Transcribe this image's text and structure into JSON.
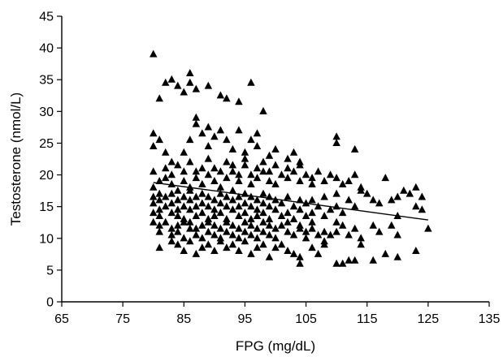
{
  "chart_data": {
    "type": "scatter",
    "title": "",
    "xlabel": "FPG (mg/dL)",
    "ylabel": "Testosterone (nmol/L)",
    "xlim": [
      65,
      135
    ],
    "ylim": [
      0,
      45
    ],
    "xticks": [
      65,
      75,
      85,
      95,
      105,
      115,
      125,
      135
    ],
    "yticks": [
      0,
      5,
      10,
      15,
      20,
      25,
      30,
      35,
      40,
      45
    ],
    "grid": false,
    "marker": "triangle",
    "color": "#000000",
    "trendline": {
      "x": [
        80,
        125
      ],
      "y": [
        18.8,
        12.9
      ]
    },
    "points": [
      [
        80,
        39.0
      ],
      [
        81,
        32.0
      ],
      [
        82,
        34.5
      ],
      [
        83,
        35.0
      ],
      [
        84,
        34.0
      ],
      [
        85,
        33.0
      ],
      [
        86,
        36.0
      ],
      [
        86,
        34.5
      ],
      [
        87,
        33.5
      ],
      [
        89,
        34.0
      ],
      [
        91,
        32.5
      ],
      [
        92,
        32.0
      ],
      [
        94,
        31.5
      ],
      [
        96,
        34.5
      ],
      [
        98,
        30.0
      ],
      [
        80,
        26.5
      ],
      [
        80,
        24.5
      ],
      [
        81,
        25.5
      ],
      [
        82,
        23.5
      ],
      [
        83,
        22.0
      ],
      [
        85,
        23.5
      ],
      [
        86,
        25.5
      ],
      [
        87,
        29.0
      ],
      [
        87,
        28.0
      ],
      [
        88,
        26.5
      ],
      [
        89,
        27.5
      ],
      [
        89,
        24.5
      ],
      [
        90,
        26.0
      ],
      [
        91,
        27.0
      ],
      [
        92,
        25.5
      ],
      [
        93,
        24.0
      ],
      [
        94,
        27.0
      ],
      [
        95,
        23.5
      ],
      [
        96,
        25.5
      ],
      [
        97,
        24.5
      ],
      [
        97,
        26.5
      ],
      [
        99,
        23.0
      ],
      [
        100,
        24.0
      ],
      [
        102,
        22.5
      ],
      [
        103,
        23.5
      ],
      [
        104,
        22.0
      ],
      [
        110,
        26.0
      ],
      [
        110,
        25.0
      ],
      [
        113,
        24.0
      ],
      [
        80,
        20.5
      ],
      [
        80,
        18.0
      ],
      [
        80,
        16.5
      ],
      [
        81,
        19.0
      ],
      [
        81,
        17.0
      ],
      [
        82,
        19.5
      ],
      [
        82,
        21.0
      ],
      [
        83,
        18.5
      ],
      [
        83,
        20.0
      ],
      [
        84,
        21.5
      ],
      [
        84,
        17.5
      ],
      [
        85,
        19.0
      ],
      [
        85,
        20.5
      ],
      [
        86,
        22.0
      ],
      [
        86,
        18.0
      ],
      [
        87,
        20.5
      ],
      [
        87,
        19.5
      ],
      [
        88,
        21.0
      ],
      [
        88,
        18.5
      ],
      [
        89,
        20.0
      ],
      [
        89,
        22.5
      ],
      [
        90,
        19.0
      ],
      [
        90,
        21.0
      ],
      [
        91,
        20.5
      ],
      [
        91,
        18.0
      ],
      [
        92,
        22.0
      ],
      [
        92,
        19.5
      ],
      [
        93,
        20.5
      ],
      [
        93,
        21.5
      ],
      [
        94,
        19.0
      ],
      [
        94,
        20.0
      ],
      [
        95,
        21.5
      ],
      [
        95,
        22.5
      ],
      [
        96,
        20.0
      ],
      [
        96,
        18.5
      ],
      [
        97,
        21.0
      ],
      [
        97,
        19.5
      ],
      [
        98,
        20.5
      ],
      [
        98,
        22.0
      ],
      [
        99,
        19.0
      ],
      [
        99,
        20.5
      ],
      [
        100,
        21.5
      ],
      [
        100,
        18.5
      ],
      [
        101,
        20.0
      ],
      [
        102,
        19.5
      ],
      [
        102,
        21.0
      ],
      [
        103,
        20.5
      ],
      [
        104,
        19.0
      ],
      [
        104,
        21.5
      ],
      [
        105,
        20.0
      ],
      [
        106,
        19.5
      ],
      [
        106,
        18.5
      ],
      [
        107,
        20.5
      ],
      [
        108,
        19.0
      ],
      [
        109,
        20.0
      ],
      [
        110,
        19.5
      ],
      [
        111,
        18.5
      ],
      [
        112,
        19.0
      ],
      [
        113,
        20.0
      ],
      [
        114,
        18.0
      ],
      [
        118,
        19.5
      ],
      [
        120,
        16.5
      ],
      [
        121,
        17.5
      ],
      [
        122,
        17.0
      ],
      [
        123,
        18.0
      ],
      [
        124,
        16.5
      ],
      [
        80,
        15.5
      ],
      [
        80,
        14.0
      ],
      [
        81,
        16.0
      ],
      [
        81,
        14.5
      ],
      [
        81,
        13.5
      ],
      [
        82,
        15.0
      ],
      [
        82,
        16.5
      ],
      [
        83,
        14.0
      ],
      [
        83,
        15.5
      ],
      [
        83,
        17.0
      ],
      [
        84,
        13.5
      ],
      [
        84,
        16.0
      ],
      [
        84,
        14.5
      ],
      [
        85,
        15.0
      ],
      [
        85,
        16.5
      ],
      [
        85,
        13.0
      ],
      [
        86,
        14.5
      ],
      [
        86,
        16.0
      ],
      [
        86,
        17.5
      ],
      [
        87,
        15.0
      ],
      [
        87,
        13.5
      ],
      [
        87,
        16.5
      ],
      [
        88,
        14.0
      ],
      [
        88,
        15.5
      ],
      [
        88,
        17.0
      ],
      [
        89,
        13.0
      ],
      [
        89,
        15.0
      ],
      [
        89,
        16.5
      ],
      [
        90,
        14.5
      ],
      [
        90,
        16.0
      ],
      [
        90,
        13.5
      ],
      [
        91,
        15.5
      ],
      [
        91,
        17.0
      ],
      [
        91,
        14.0
      ],
      [
        92,
        15.0
      ],
      [
        92,
        16.5
      ],
      [
        92,
        13.0
      ],
      [
        93,
        14.5
      ],
      [
        93,
        16.0
      ],
      [
        93,
        17.5
      ],
      [
        94,
        15.0
      ],
      [
        94,
        13.5
      ],
      [
        94,
        16.5
      ],
      [
        95,
        14.0
      ],
      [
        95,
        15.5
      ],
      [
        95,
        17.0
      ],
      [
        96,
        13.0
      ],
      [
        96,
        15.0
      ],
      [
        96,
        16.5
      ],
      [
        97,
        14.5
      ],
      [
        97,
        16.0
      ],
      [
        97,
        13.5
      ],
      [
        98,
        15.5
      ],
      [
        98,
        17.0
      ],
      [
        98,
        14.0
      ],
      [
        99,
        15.0
      ],
      [
        99,
        16.5
      ],
      [
        99,
        13.0
      ],
      [
        100,
        14.5
      ],
      [
        100,
        16.0
      ],
      [
        101,
        15.5
      ],
      [
        101,
        13.5
      ],
      [
        102,
        14.0
      ],
      [
        102,
        16.5
      ],
      [
        103,
        15.0
      ],
      [
        103,
        13.0
      ],
      [
        104,
        14.5
      ],
      [
        104,
        16.0
      ],
      [
        105,
        15.5
      ],
      [
        105,
        13.5
      ],
      [
        106,
        14.0
      ],
      [
        106,
        16.0
      ],
      [
        107,
        15.0
      ],
      [
        108,
        13.5
      ],
      [
        108,
        16.5
      ],
      [
        109,
        14.5
      ],
      [
        110,
        15.0
      ],
      [
        110,
        17.0
      ],
      [
        111,
        14.0
      ],
      [
        112,
        16.0
      ],
      [
        113,
        15.0
      ],
      [
        114,
        17.5
      ],
      [
        115,
        17.0
      ],
      [
        116,
        16.0
      ],
      [
        117,
        15.5
      ],
      [
        119,
        16.0
      ],
      [
        120,
        13.5
      ],
      [
        123,
        15.0
      ],
      [
        124,
        14.5
      ],
      [
        80,
        12.5
      ],
      [
        81,
        11.0
      ],
      [
        81,
        12.0
      ],
      [
        82,
        12.5
      ],
      [
        83,
        11.5
      ],
      [
        83,
        10.5
      ],
      [
        84,
        12.0
      ],
      [
        84,
        11.0
      ],
      [
        85,
        12.5
      ],
      [
        85,
        10.0
      ],
      [
        86,
        11.5
      ],
      [
        86,
        12.5
      ],
      [
        87,
        10.5
      ],
      [
        87,
        11.5
      ],
      [
        88,
        12.0
      ],
      [
        88,
        10.0
      ],
      [
        89,
        11.0
      ],
      [
        89,
        12.5
      ],
      [
        90,
        10.5
      ],
      [
        90,
        12.0
      ],
      [
        91,
        11.5
      ],
      [
        91,
        10.0
      ],
      [
        92,
        12.5
      ],
      [
        92,
        11.0
      ],
      [
        93,
        10.5
      ],
      [
        93,
        12.0
      ],
      [
        94,
        11.5
      ],
      [
        94,
        10.0
      ],
      [
        95,
        12.5
      ],
      [
        95,
        11.0
      ],
      [
        96,
        10.5
      ],
      [
        96,
        12.0
      ],
      [
        97,
        11.5
      ],
      [
        97,
        10.0
      ],
      [
        98,
        12.5
      ],
      [
        98,
        11.0
      ],
      [
        99,
        10.5
      ],
      [
        99,
        12.0
      ],
      [
        100,
        11.5
      ],
      [
        100,
        10.0
      ],
      [
        101,
        12.0
      ],
      [
        102,
        11.0
      ],
      [
        102,
        12.5
      ],
      [
        103,
        10.5
      ],
      [
        104,
        11.5
      ],
      [
        104,
        12.0
      ],
      [
        105,
        11.0
      ],
      [
        105,
        10.0
      ],
      [
        106,
        12.5
      ],
      [
        106,
        11.5
      ],
      [
        107,
        10.5
      ],
      [
        108,
        11.0
      ],
      [
        108,
        9.5
      ],
      [
        109,
        10.5
      ],
      [
        110,
        12.5
      ],
      [
        110,
        11.0
      ],
      [
        111,
        12.0
      ],
      [
        112,
        10.5
      ],
      [
        113,
        11.5
      ],
      [
        114,
        10.0
      ],
      [
        116,
        12.0
      ],
      [
        117,
        11.0
      ],
      [
        119,
        12.0
      ],
      [
        120,
        10.5
      ],
      [
        125,
        11.5
      ],
      [
        81,
        8.5
      ],
      [
        83,
        9.5
      ],
      [
        84,
        9.0
      ],
      [
        85,
        8.0
      ],
      [
        86,
        9.5
      ],
      [
        87,
        7.5
      ],
      [
        88,
        8.5
      ],
      [
        89,
        9.0
      ],
      [
        90,
        8.0
      ],
      [
        91,
        9.5
      ],
      [
        92,
        8.5
      ],
      [
        93,
        9.0
      ],
      [
        94,
        8.0
      ],
      [
        95,
        9.5
      ],
      [
        96,
        7.5
      ],
      [
        97,
        8.5
      ],
      [
        98,
        9.0
      ],
      [
        99,
        7.0
      ],
      [
        100,
        8.5
      ],
      [
        101,
        9.0
      ],
      [
        102,
        8.0
      ],
      [
        103,
        7.5
      ],
      [
        104,
        6.0
      ],
      [
        104,
        7.0
      ],
      [
        106,
        8.5
      ],
      [
        107,
        7.5
      ],
      [
        108,
        9.0
      ],
      [
        110,
        6.0
      ],
      [
        111,
        6.0
      ],
      [
        112,
        6.5
      ],
      [
        113,
        6.5
      ],
      [
        114,
        9.0
      ],
      [
        116,
        6.5
      ],
      [
        118,
        7.5
      ],
      [
        120,
        7.0
      ],
      [
        123,
        8.0
      ]
    ]
  }
}
